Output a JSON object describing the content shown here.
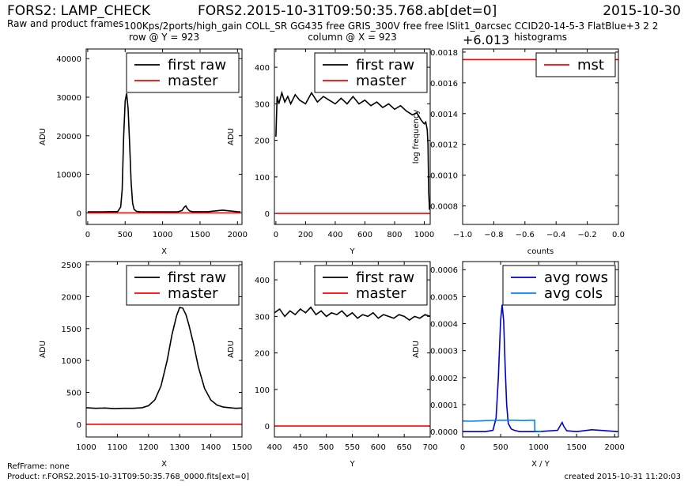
{
  "header": {
    "title_left": "FORS2: LAMP_CHECK",
    "title_center": "FORS2.2015-10-31T09:50:35.768.ab[det=0]",
    "date": "2015-10-30",
    "subtitle": "Raw and product frames",
    "setup": "100Kps/2ports/high_gain COLL_SR GG435 free GRIS_300V free free lSlit1_0arcsec CCID20-14-5-3 FlatBlue+3 2 2"
  },
  "footer": {
    "ref": "RefFrame: none",
    "product": "Product: r.FORS2.2015-10-31T09:50:35.768_0000.fits[ext=0]",
    "created": "created 2015-10-31 11:20:03"
  },
  "chart_data": [
    {
      "type": "line",
      "title": "row @ Y = 923",
      "xlabel": "X",
      "ylabel": "ADU",
      "xlim": [
        -20,
        2060
      ],
      "ylim": [
        -3000,
        42500
      ],
      "xticks": [
        0,
        500,
        1000,
        1500,
        2000
      ],
      "yticks": [
        0,
        10000,
        20000,
        30000,
        40000
      ],
      "legend": "top-right",
      "series": [
        {
          "name": "first raw",
          "color": "#000000",
          "x": [
            0,
            200,
            400,
            440,
            460,
            480,
            500,
            520,
            540,
            560,
            580,
            600,
            620,
            650,
            700,
            1000,
            1200,
            1260,
            1290,
            1310,
            1330,
            1360,
            1400,
            1600,
            1700,
            1800,
            1900,
            2000,
            2040
          ],
          "y": [
            250,
            250,
            350,
            1500,
            6000,
            20000,
            29000,
            31000,
            27000,
            18000,
            8000,
            2500,
            900,
            400,
            300,
            250,
            250,
            600,
            1500,
            1800,
            1100,
            500,
            300,
            300,
            500,
            700,
            500,
            300,
            250
          ]
        },
        {
          "name": "master",
          "color": "#ff0000",
          "x": [
            0,
            2040
          ],
          "y": [
            0,
            0
          ]
        }
      ]
    },
    {
      "type": "line",
      "title": "column @ X = 923",
      "xlabel": "Y",
      "ylabel": "ADU",
      "xlim": [
        -10,
        1040
      ],
      "ylim": [
        -30,
        450
      ],
      "xticks": [
        0,
        200,
        400,
        600,
        800,
        1000
      ],
      "yticks": [
        0,
        100,
        200,
        300,
        400
      ],
      "legend": "top-right",
      "series": [
        {
          "name": "first raw",
          "color": "#000000",
          "x": [
            0,
            8,
            20,
            40,
            60,
            80,
            100,
            130,
            160,
            200,
            240,
            280,
            320,
            360,
            400,
            440,
            480,
            520,
            560,
            600,
            640,
            680,
            720,
            760,
            800,
            840,
            880,
            920,
            950,
            980,
            1000,
            1010,
            1020,
            1025,
            1030,
            1035
          ],
          "y": [
            210,
            320,
            300,
            330,
            305,
            320,
            300,
            325,
            310,
            300,
            330,
            305,
            320,
            310,
            300,
            315,
            300,
            320,
            300,
            310,
            295,
            305,
            290,
            300,
            285,
            295,
            280,
            270,
            275,
            255,
            245,
            250,
            230,
            190,
            60,
            10
          ]
        },
        {
          "name": "master",
          "color": "#ff0000",
          "x": [
            0,
            1035
          ],
          "y": [
            0,
            0
          ]
        }
      ]
    },
    {
      "type": "line",
      "title": "histograms",
      "xlabel": "counts",
      "ylabel": "log frequency",
      "offset_label": "+6.013",
      "xlim": [
        -1.0,
        0.0
      ],
      "ylim": [
        0.00068,
        0.00182
      ],
      "xticks": [
        "−1.0",
        "−0.8",
        "−0.6",
        "−0.4",
        "−0.2",
        "0.0"
      ],
      "xtick_values": [
        -1.0,
        -0.8,
        -0.6,
        -0.4,
        -0.2,
        0.0
      ],
      "yticks": [
        "0.0008",
        "0.0010",
        "0.0012",
        "0.0014",
        "0.0016",
        "0.0018"
      ],
      "ytick_values": [
        0.0008,
        0.001,
        0.0012,
        0.0014,
        0.0016,
        0.0018
      ],
      "legend": "top-right",
      "series": [
        {
          "name": "mst",
          "color": "#ff0000",
          "x": [
            -1.0,
            0.0
          ],
          "y": [
            0.001751,
            0.001751
          ]
        }
      ]
    },
    {
      "type": "line",
      "title": "",
      "xlabel": "X",
      "ylabel": "ADU",
      "xlim": [
        1000,
        1500
      ],
      "ylim": [
        -200,
        2550
      ],
      "xticks": [
        1000,
        1100,
        1200,
        1300,
        1400,
        1500
      ],
      "yticks": [
        0,
        500,
        1000,
        1500,
        2000,
        2500
      ],
      "legend": "top-right",
      "series": [
        {
          "name": "first raw",
          "color": "#000000",
          "x": [
            1000,
            1030,
            1060,
            1090,
            1120,
            1150,
            1180,
            1200,
            1220,
            1240,
            1260,
            1275,
            1290,
            1300,
            1310,
            1320,
            1330,
            1345,
            1360,
            1380,
            1400,
            1420,
            1440,
            1460,
            1480,
            1500
          ],
          "y": [
            260,
            250,
            255,
            245,
            250,
            250,
            260,
            290,
            380,
            600,
            1000,
            1400,
            1700,
            1830,
            1820,
            1720,
            1550,
            1250,
            900,
            560,
            380,
            300,
            270,
            260,
            250,
            255
          ]
        },
        {
          "name": "master",
          "color": "#ff0000",
          "x": [
            1000,
            1500
          ],
          "y": [
            0,
            0
          ]
        }
      ]
    },
    {
      "type": "line",
      "title": "",
      "xlabel": "Y",
      "ylabel": "ADU",
      "xlim": [
        400,
        700
      ],
      "ylim": [
        -30,
        450
      ],
      "xticks": [
        400,
        450,
        500,
        550,
        600,
        650,
        700
      ],
      "yticks": [
        0,
        100,
        200,
        300,
        400
      ],
      "legend": "top-right",
      "series": [
        {
          "name": "first raw",
          "color": "#000000",
          "x": [
            400,
            410,
            420,
            430,
            440,
            450,
            460,
            470,
            480,
            490,
            500,
            510,
            520,
            530,
            540,
            550,
            560,
            570,
            580,
            590,
            600,
            610,
            620,
            630,
            640,
            650,
            660,
            670,
            680,
            690,
            700
          ],
          "y": [
            310,
            320,
            300,
            315,
            305,
            320,
            310,
            325,
            305,
            315,
            300,
            310,
            305,
            315,
            300,
            310,
            295,
            305,
            300,
            310,
            295,
            305,
            300,
            295,
            305,
            300,
            290,
            300,
            295,
            305,
            300
          ]
        },
        {
          "name": "master",
          "color": "#ff0000",
          "x": [
            400,
            700
          ],
          "y": [
            0,
            0
          ]
        }
      ]
    },
    {
      "type": "line",
      "title": "",
      "xlabel": "X / Y",
      "ylabel": "ADU",
      "xlim": [
        0,
        2050
      ],
      "ylim": [
        -2e-05,
        0.00063
      ],
      "xticks": [
        0,
        500,
        1000,
        1500,
        2000
      ],
      "xtick_values": [
        0,
        500,
        1000,
        1500,
        2000
      ],
      "yticks": [
        "0.0000",
        "0.0001",
        "0.0002",
        "0.0003",
        "0.0004",
        "0.0005",
        "0.0006"
      ],
      "ytick_values": [
        0,
        0.0001,
        0.0002,
        0.0003,
        0.0004,
        0.0005,
        0.0006
      ],
      "legend": "top-right",
      "series": [
        {
          "name": "avg rows",
          "color": "#0000cc",
          "x": [
            0,
            300,
            400,
            440,
            470,
            500,
            520,
            540,
            560,
            580,
            600,
            640,
            680,
            750,
            1000,
            1250,
            1290,
            1310,
            1330,
            1370,
            1500,
            1700,
            1850,
            2040
          ],
          "y": [
            0,
            0,
            5e-06,
            5e-05,
            0.0002,
            0.00041,
            0.00047,
            0.00041,
            0.00024,
            0.0001,
            3e-05,
            1e-05,
            5e-06,
            0,
            0,
            5e-06,
            2.5e-05,
            3.4e-05,
            2e-05,
            3e-06,
            0,
            7e-06,
            4e-06,
            0
          ]
        },
        {
          "name": "avg cols",
          "color": "#0080ff",
          "x": [
            0,
            100,
            200,
            300,
            400,
            500,
            600,
            700,
            800,
            900,
            948,
            950,
            1035
          ],
          "y": [
            3.95e-05,
            3.85e-05,
            3.95e-05,
            4.05e-05,
            4.15e-05,
            4.2e-05,
            4.25e-05,
            4.2e-05,
            4.1e-05,
            4.2e-05,
            4.2e-05,
            2e-06,
            0.0
          ]
        }
      ]
    }
  ]
}
